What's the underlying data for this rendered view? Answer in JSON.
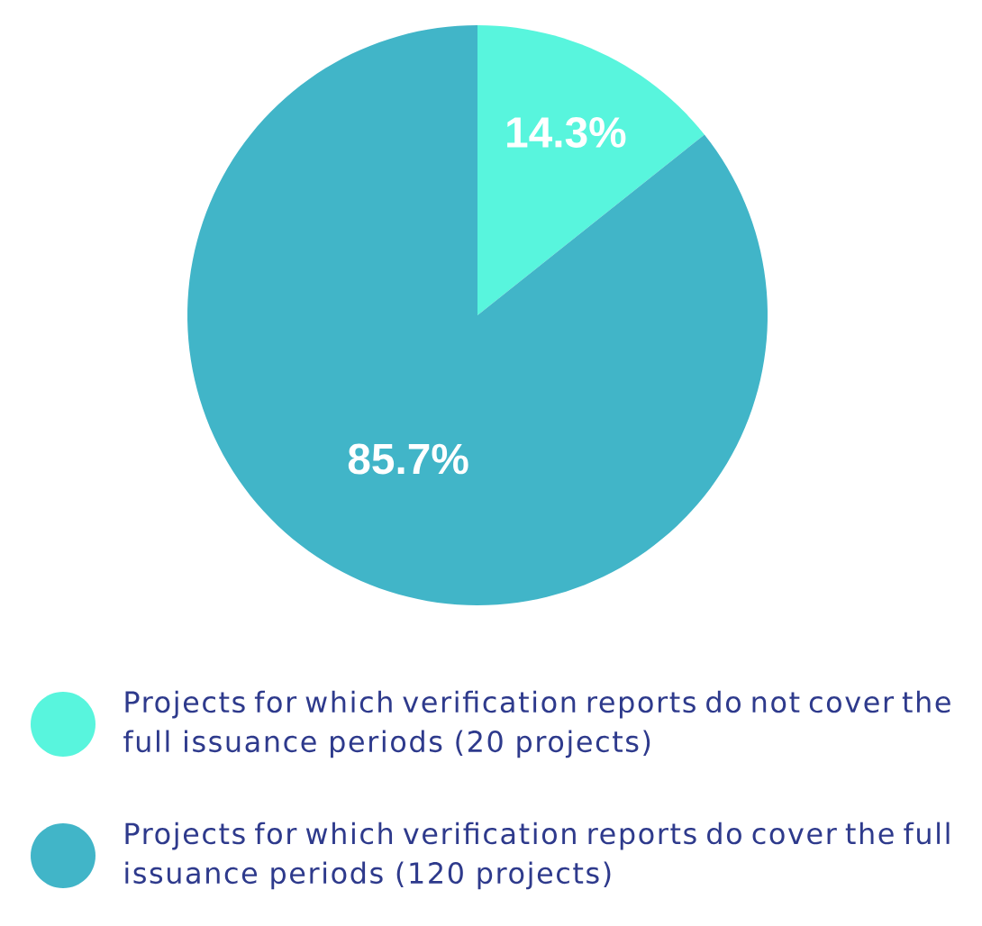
{
  "chart_data": {
    "type": "pie",
    "categories": [
      "Projects for which verification reports do not cover the full issuance periods (20 projects)",
      "Projects for which verification reports do cover the full issuance periods (120 projects)"
    ],
    "values": [
      14.3,
      85.7
    ],
    "colors": [
      "#58f5dd",
      "#41b5c8"
    ],
    "value_labels": [
      "14.3%",
      "85.7%"
    ],
    "legend": "bottom"
  }
}
